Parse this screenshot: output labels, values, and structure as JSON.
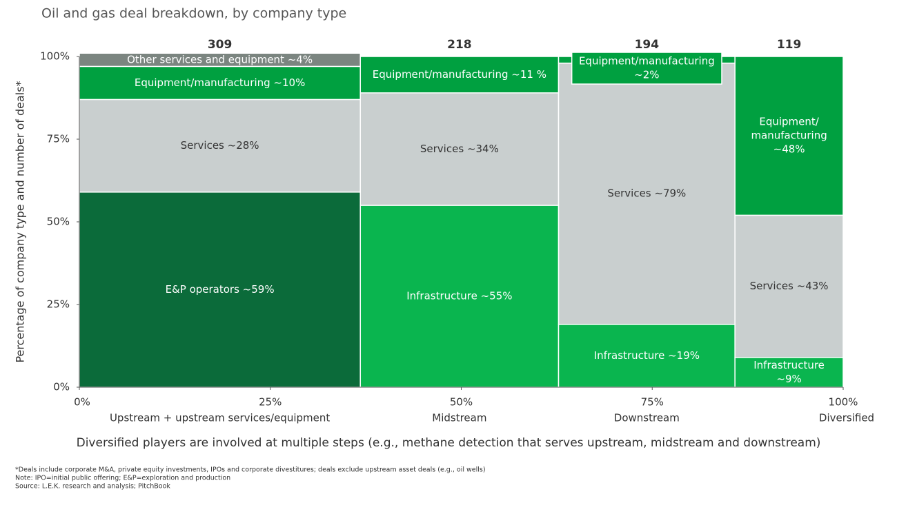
{
  "chart_data": {
    "type": "marimekko",
    "title": "Oil and gas deal breakdown, by company type",
    "y_label": "Percentage of company type and number of deals*",
    "ylim": [
      0,
      100
    ],
    "yticks": [
      {
        "value": 0,
        "label": "0%"
      },
      {
        "value": 25,
        "label": "25%"
      },
      {
        "value": 50,
        "label": "50%"
      },
      {
        "value": 75,
        "label": "75%"
      },
      {
        "value": 100,
        "label": "100%"
      }
    ],
    "xlim": [
      0,
      100
    ],
    "xticks": [
      {
        "value": 0,
        "label": "0%"
      },
      {
        "value": 25,
        "label": "25%"
      },
      {
        "value": 50,
        "label": "50%"
      },
      {
        "value": 75,
        "label": "75%"
      },
      {
        "value": 100,
        "label": "100%"
      }
    ],
    "columns": [
      {
        "name": "Upstream + upstream services/equipment",
        "total": 309,
        "segments": [
          {
            "label": [
              "E&P operators ~59%"
            ],
            "value": 59,
            "color": "#0b6b3a"
          },
          {
            "label": [
              "Services ~28%"
            ],
            "value": 28,
            "color": "#c9cfcf"
          },
          {
            "label": [
              "Equipment/manufacturing  ~10%"
            ],
            "value": 10,
            "color": "#00a040"
          },
          {
            "label": [
              "Other services and equipment  ~4%"
            ],
            "value": 4,
            "color": "#7b8580"
          }
        ]
      },
      {
        "name": "Midstream",
        "total": 218,
        "segments": [
          {
            "label": [
              "Infrastructure ~55%"
            ],
            "value": 55,
            "color": "#0ab54f"
          },
          {
            "label": [
              "Services ~34%"
            ],
            "value": 34,
            "color": "#c9cfcf"
          },
          {
            "label": [
              "Equipment/manufacturing ~11 %"
            ],
            "value": 11,
            "color": "#00a040"
          }
        ]
      },
      {
        "name": "Downstream",
        "total": 194,
        "segments": [
          {
            "label": [
              "Infrastructure ~19%"
            ],
            "value": 19,
            "color": "#0ab54f"
          },
          {
            "label": [
              "Services ~79%"
            ],
            "value": 79,
            "color": "#c9cfcf"
          },
          {
            "label": [
              "Equipment/manufacturing",
              "~2%"
            ],
            "value": 2,
            "color": "#00a040"
          }
        ]
      },
      {
        "name": "Diversified",
        "total": 119,
        "segments": [
          {
            "label": [
              "Infrastructure",
              "~9%"
            ],
            "value": 9,
            "color": "#0ab54f"
          },
          {
            "label": [
              "Services ~43%"
            ],
            "value": 43,
            "color": "#c9cfcf"
          },
          {
            "label": [
              "Equipment/",
              "manufacturing",
              "~48%"
            ],
            "value": 48,
            "color": "#00a040"
          }
        ]
      }
    ],
    "caption": "Diversified players are involved at multiple steps (e.g., methane detection that serves upstream, midstream and downstream)",
    "footnotes": [
      "*Deals include corporate M&A, private equity investments, IPOs and corporate divestitures; deals exclude upstream asset deals (e.g., oil wells)",
      "Note: IPO=initial public offering; E&P=exploration and production",
      "Source: L.E.K. research and analysis; PitchBook"
    ]
  }
}
